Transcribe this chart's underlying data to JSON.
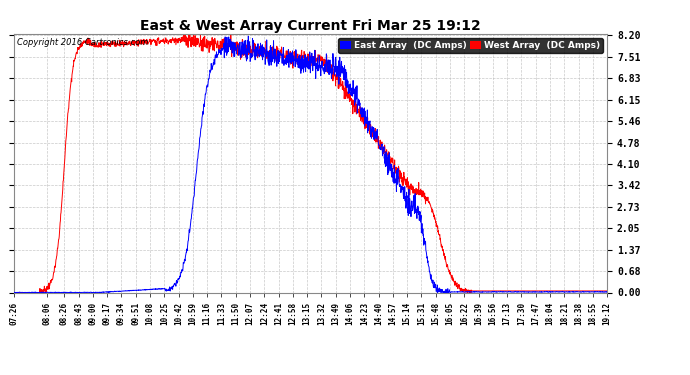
{
  "title": "East & West Array Current Fri Mar 25 19:12",
  "copyright": "Copyright 2016 Cartronics.com",
  "ylabel_east": "East Array  (DC Amps)",
  "ylabel_west": "West Array  (DC Amps)",
  "east_color": "#0000FF",
  "west_color": "#FF0000",
  "background_color": "#FFFFFF",
  "plot_background": "#FFFFFF",
  "grid_color": "#BBBBBB",
  "yticks": [
    0.0,
    0.68,
    1.37,
    2.05,
    2.73,
    3.42,
    4.1,
    4.78,
    5.46,
    6.15,
    6.83,
    7.51,
    8.2
  ],
  "ylim": [
    0.0,
    8.2
  ],
  "x_labels": [
    "07:26",
    "08:06",
    "08:26",
    "08:43",
    "09:00",
    "09:17",
    "09:34",
    "09:51",
    "10:08",
    "10:25",
    "10:42",
    "10:59",
    "11:16",
    "11:33",
    "11:50",
    "12:07",
    "12:24",
    "12:41",
    "12:58",
    "13:15",
    "13:32",
    "13:49",
    "14:06",
    "14:23",
    "14:40",
    "14:57",
    "15:14",
    "15:31",
    "15:48",
    "16:05",
    "16:22",
    "16:39",
    "16:56",
    "17:13",
    "17:30",
    "17:47",
    "18:04",
    "18:21",
    "18:38",
    "18:55",
    "19:12"
  ]
}
